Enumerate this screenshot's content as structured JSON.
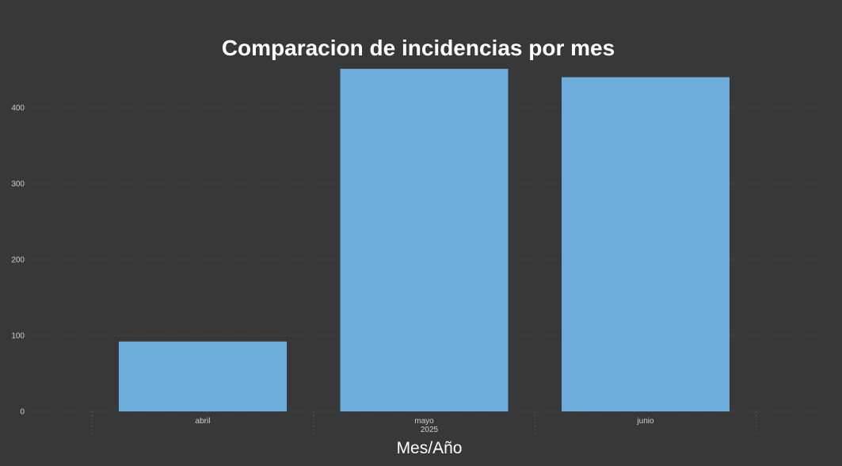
{
  "chart_data": {
    "type": "bar",
    "title": "Comparacion de incidencias por mes",
    "xlabel": "Mes/Año",
    "ylabel": "",
    "categories": [
      "abril",
      "mayo",
      "junio"
    ],
    "year_label": "2025",
    "values": [
      92,
      451,
      440
    ],
    "ylim": [
      0,
      451
    ],
    "yticks": [
      0,
      100,
      200,
      300,
      400
    ],
    "grid": true,
    "bar_color": "#6daddc",
    "background_color": "#383838"
  }
}
